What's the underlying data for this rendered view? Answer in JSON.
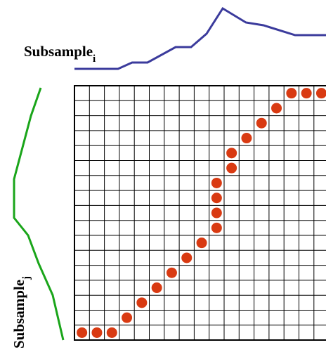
{
  "labels": {
    "top": {
      "text": "Subsample",
      "subscript": "i"
    },
    "left": {
      "text": "Subsample",
      "subscript": "j"
    }
  }
}
